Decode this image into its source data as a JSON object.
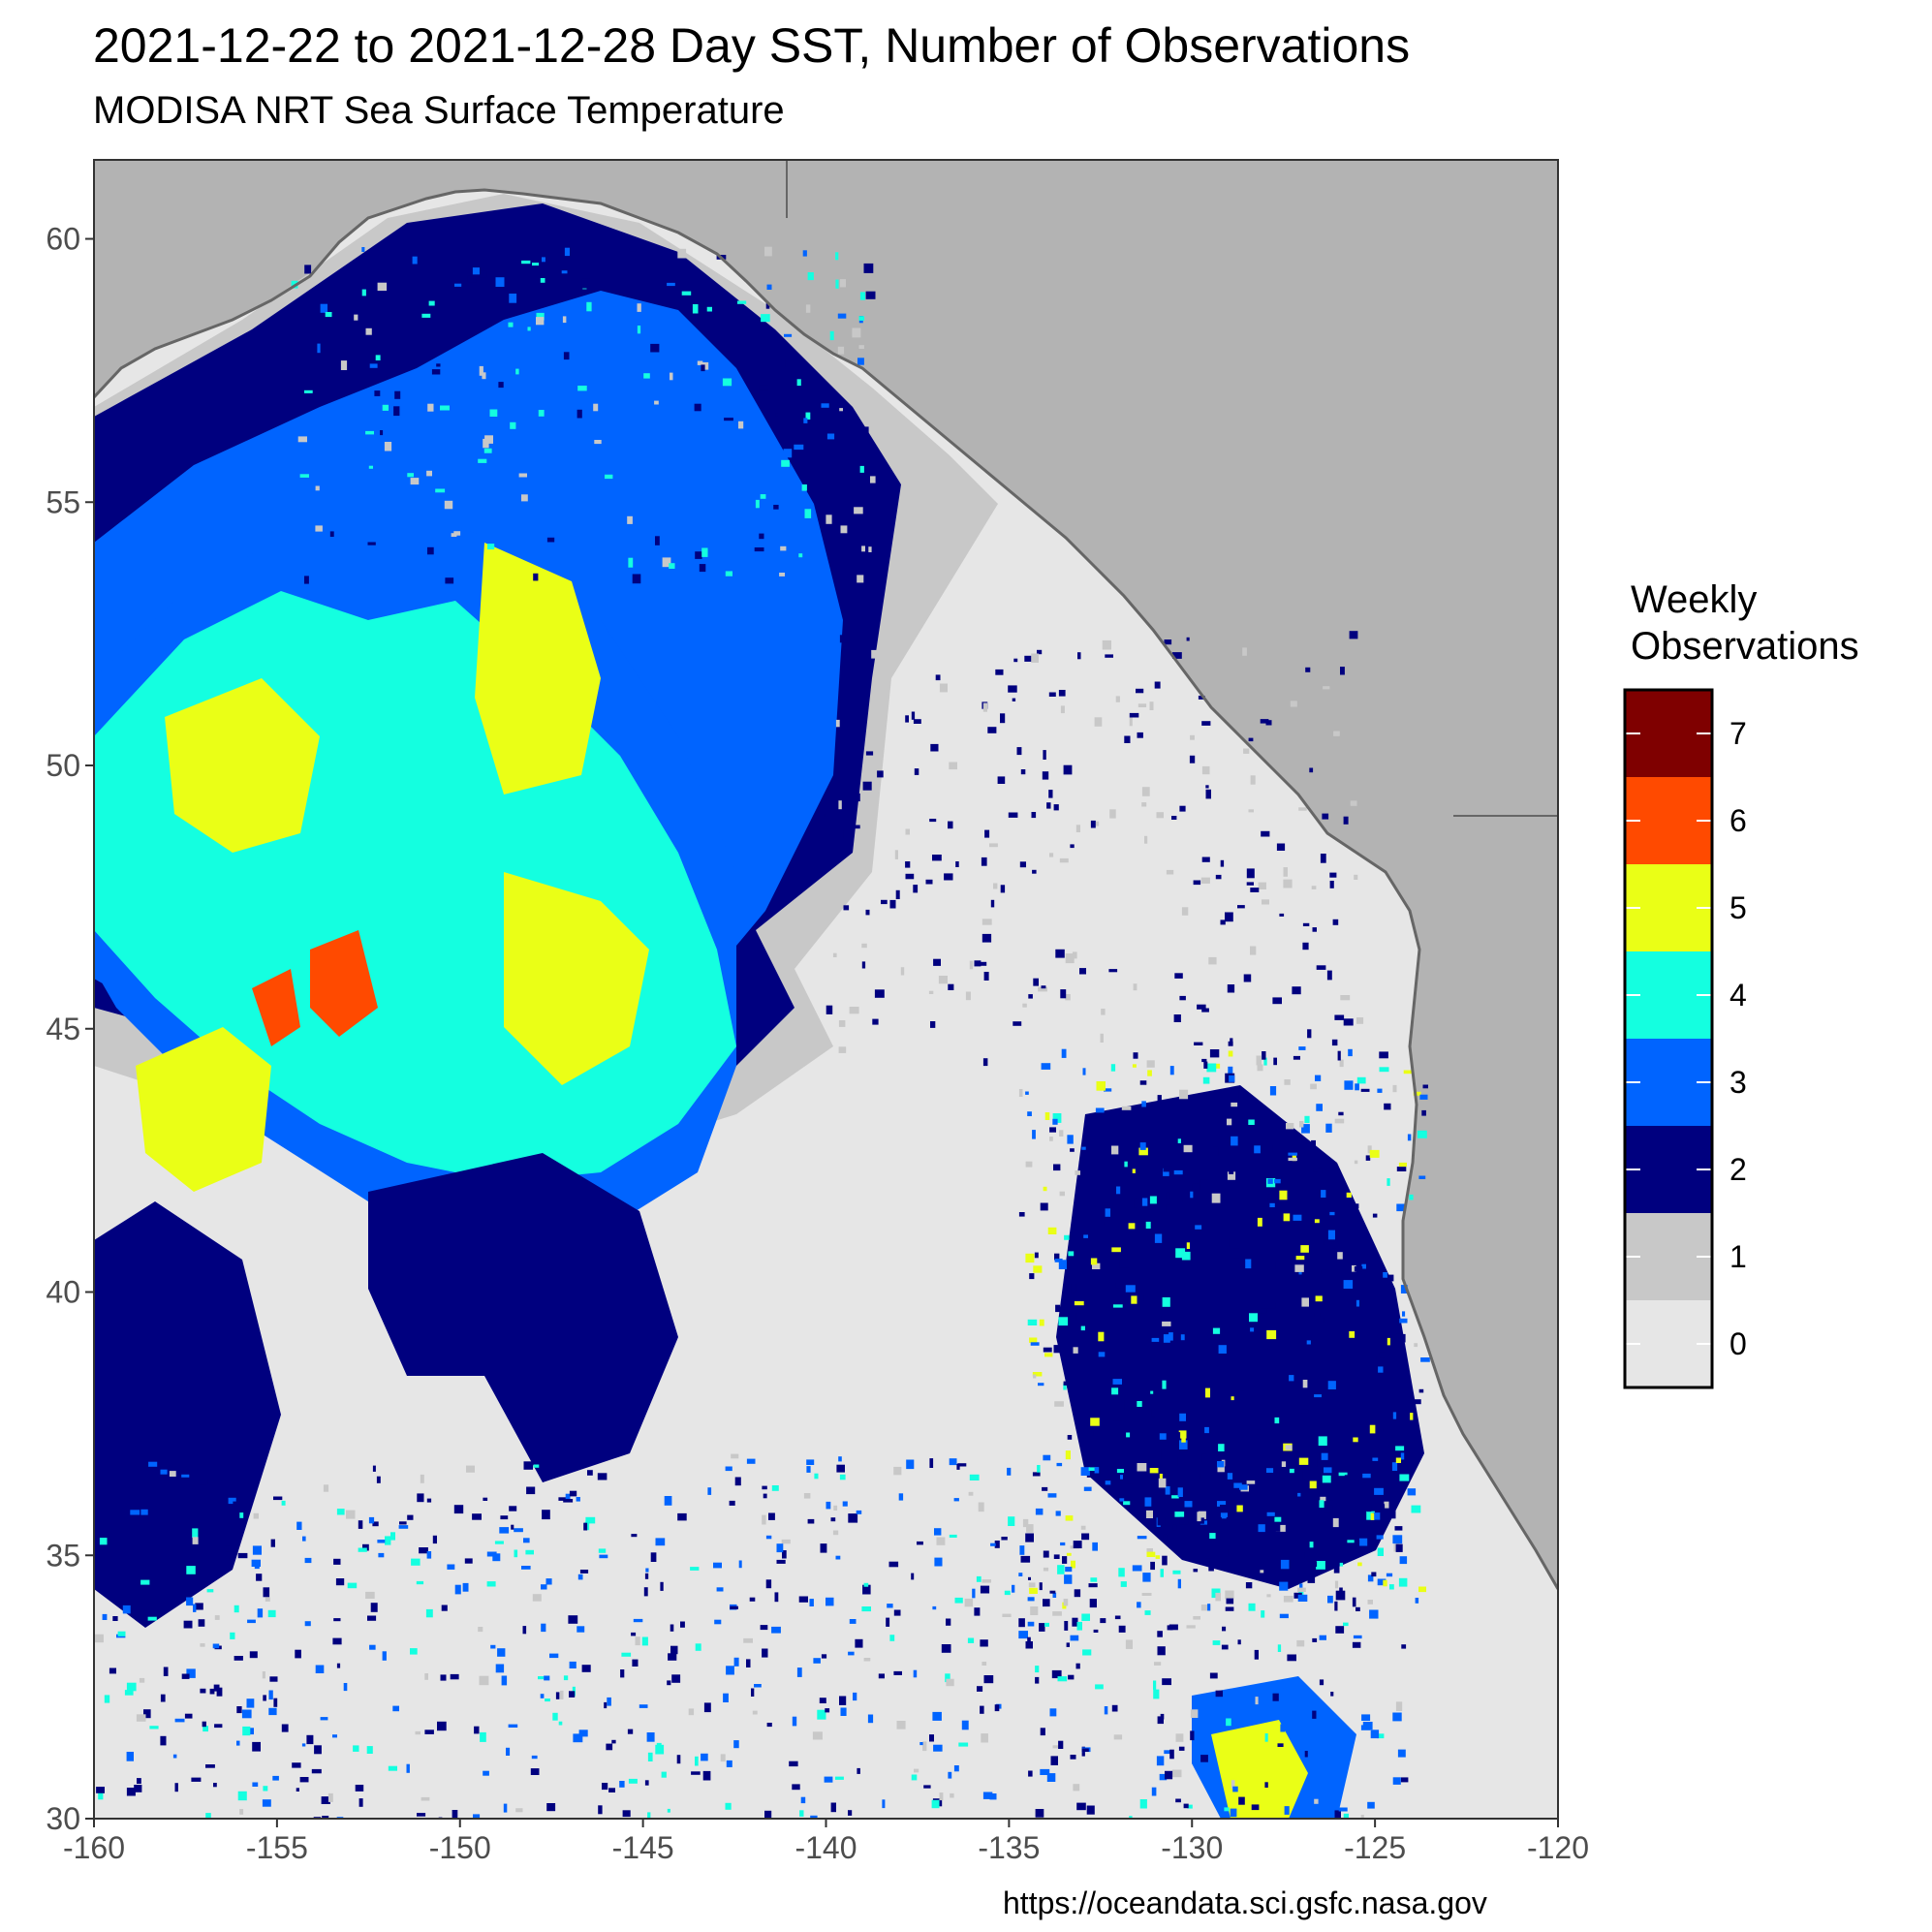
{
  "title": "2021-12-22 to 2021-12-28 Day SST, Number of Observations",
  "subtitle": "MODISA NRT Sea Surface Temperature",
  "credit": "https://oceandata.sci.gsfc.nasa.gov",
  "colors": {
    "land": "#b3b3b3",
    "coastline": "#666666",
    "panel_border": "#333333"
  },
  "chart_data": {
    "type": "heatmap",
    "xlim": [
      -160,
      -120
    ],
    "ylim": [
      30,
      61.5
    ],
    "x_ticks": [
      -160,
      -155,
      -150,
      -145,
      -140,
      -135,
      -130,
      -125,
      -120
    ],
    "x_tick_labels": [
      "-160",
      "-155",
      "-150",
      "-145",
      "-140",
      "-135",
      "-130",
      "-125",
      "-120"
    ],
    "y_ticks": [
      30,
      35,
      40,
      45,
      50,
      55,
      60
    ],
    "y_tick_labels": [
      "30",
      "35",
      "40",
      "45",
      "50",
      "55",
      "60"
    ],
    "legend": {
      "title_line1": "Weekly",
      "title_line2": "Observations",
      "placement": "right",
      "levels": [
        {
          "value": 7,
          "label": "7",
          "color": "#7f0000"
        },
        {
          "value": 6,
          "label": "6",
          "color": "#ff4a00"
        },
        {
          "value": 5,
          "label": "5",
          "color": "#eaff16"
        },
        {
          "value": 4,
          "label": "4",
          "color": "#14ffe0"
        },
        {
          "value": 3,
          "label": "3",
          "color": "#0064ff"
        },
        {
          "value": 2,
          "label": "2",
          "color": "#00007f"
        },
        {
          "value": 1,
          "label": "1",
          "color": "#c8c8c8"
        },
        {
          "value": 0,
          "label": "0",
          "color": "#e6e6e6"
        }
      ]
    }
  }
}
